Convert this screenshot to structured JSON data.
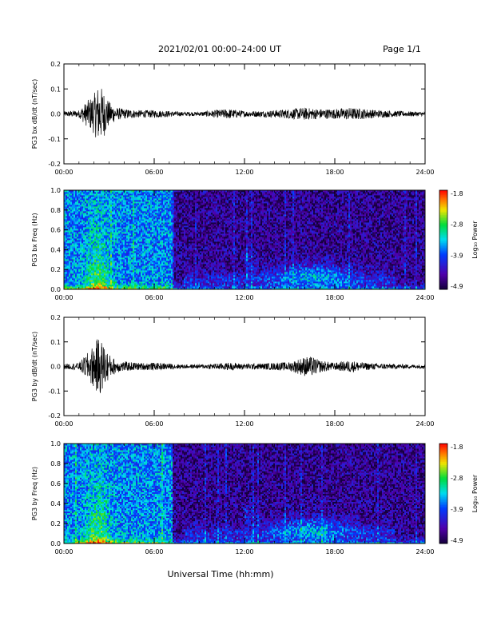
{
  "header": {
    "title": "2021/02/01  00:00–24:00 UT",
    "page": "Page 1/1"
  },
  "xaxis": {
    "label": "Universal Time (hh:mm)",
    "ticks": [
      "00:00",
      "06:00",
      "12:00",
      "18:00",
      "24:00"
    ]
  },
  "colorbar": {
    "label": "Log₁₀ Power",
    "ticks": [
      "-1.8",
      "-2.8",
      "-3.9",
      "-4.9"
    ]
  },
  "chart_data": [
    {
      "type": "line",
      "ylabel": "PG3 bx dB/dt (nT/sec)",
      "xlim": [
        0,
        24
      ],
      "ylim": [
        -0.2,
        0.2
      ],
      "yticks": [
        "0.2",
        "0.1",
        "0.0",
        "-0.1",
        "-0.2"
      ],
      "series": [
        {
          "x": [
            0,
            1,
            1.5,
            2,
            2.3,
            2.6,
            3,
            3.5,
            4,
            5,
            6,
            7,
            8,
            9,
            10,
            11,
            12,
            13,
            14,
            15,
            16,
            17,
            18,
            19,
            20,
            21,
            22,
            23,
            24
          ],
          "amplitude": [
            0.01,
            0.015,
            0.05,
            0.08,
            0.12,
            0.1,
            0.05,
            0.025,
            0.02,
            0.015,
            0.015,
            0.012,
            0.008,
            0.008,
            0.015,
            0.02,
            0.012,
            0.012,
            0.015,
            0.02,
            0.025,
            0.02,
            0.02,
            0.025,
            0.02,
            0.015,
            0.012,
            0.01,
            0.008
          ]
        }
      ]
    },
    {
      "type": "heatmap",
      "ylabel": "PG3 bx Freq (Hz)",
      "xlim": [
        0,
        24
      ],
      "ylim": [
        0,
        1
      ],
      "yticks": [
        "1.0",
        "0.8",
        "0.6",
        "0.4",
        "0.2",
        "0.0"
      ],
      "zlim": [
        -4.9,
        -1.8
      ]
    },
    {
      "type": "line",
      "ylabel": "PG3 by dB/dt (nT/sec)",
      "xlim": [
        0,
        24
      ],
      "ylim": [
        -0.2,
        0.2
      ],
      "yticks": [
        "0.2",
        "0.1",
        "0.0",
        "-0.1",
        "-0.2"
      ],
      "series": [
        {
          "x": [
            0,
            1,
            1.5,
            2,
            2.3,
            2.6,
            3,
            3.5,
            4,
            5,
            6,
            7,
            8,
            9,
            10,
            11,
            12,
            13,
            14,
            15,
            16,
            16.5,
            17,
            18,
            19,
            20,
            21,
            22,
            23,
            24
          ],
          "amplitude": [
            0.01,
            0.015,
            0.05,
            0.09,
            0.12,
            0.1,
            0.05,
            0.025,
            0.02,
            0.015,
            0.015,
            0.012,
            0.008,
            0.008,
            0.012,
            0.015,
            0.012,
            0.012,
            0.015,
            0.018,
            0.04,
            0.04,
            0.025,
            0.015,
            0.025,
            0.015,
            0.012,
            0.01,
            0.008,
            0.008
          ]
        }
      ]
    },
    {
      "type": "heatmap",
      "ylabel": "PG3 by Freq (Hz)",
      "xlim": [
        0,
        24
      ],
      "ylim": [
        0,
        1
      ],
      "yticks": [
        "1.0",
        "0.8",
        "0.6",
        "0.4",
        "0.2",
        "0.0"
      ],
      "zlim": [
        -4.9,
        -1.8
      ]
    }
  ]
}
